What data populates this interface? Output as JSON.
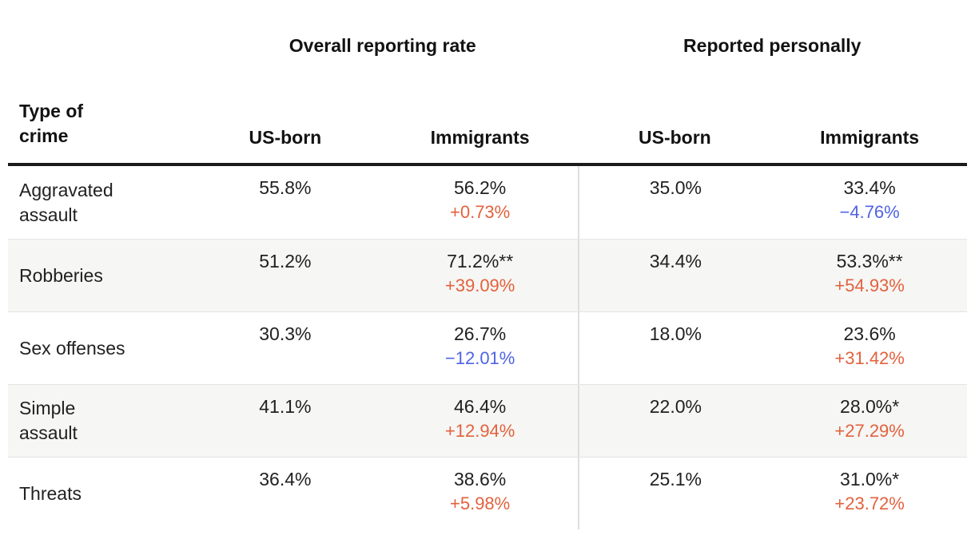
{
  "colors": {
    "increase_orange": "#e2623e",
    "decrease_blue": "#4f63e5",
    "header_rule_black": "#1b1b1b",
    "stripe_gray": "#f6f6f4"
  },
  "header": {
    "row_label": "Type of\ncrime",
    "groups": [
      {
        "label": "Overall reporting rate",
        "cols": [
          "US-born",
          "Immigrants"
        ]
      },
      {
        "label": "Reported personally",
        "cols": [
          "US-born",
          "Immigrants"
        ]
      }
    ]
  },
  "rows": [
    {
      "crime": "Aggravated\nassault",
      "cells": [
        {
          "value": "55.8%"
        },
        {
          "value": "56.2%",
          "delta": "+0.73%",
          "delta_color": "#e2623e"
        },
        {
          "value": "35.0%"
        },
        {
          "value": "33.4%",
          "delta": "−4.76%",
          "delta_color": "#4f63e5"
        }
      ]
    },
    {
      "crime": "Robberies",
      "cells": [
        {
          "value": "51.2%"
        },
        {
          "value": "71.2%**",
          "delta": "+39.09%",
          "delta_color": "#e2623e"
        },
        {
          "value": "34.4%"
        },
        {
          "value": "53.3%**",
          "delta": "+54.93%",
          "delta_color": "#e2623e"
        }
      ]
    },
    {
      "crime": "Sex offenses",
      "cells": [
        {
          "value": "30.3%"
        },
        {
          "value": "26.7%",
          "delta": "−12.01%",
          "delta_color": "#4f63e5"
        },
        {
          "value": "18.0%"
        },
        {
          "value": "23.6%",
          "delta": "+31.42%",
          "delta_color": "#e2623e"
        }
      ]
    },
    {
      "crime": "Simple\nassault",
      "cells": [
        {
          "value": "41.1%"
        },
        {
          "value": "46.4%",
          "delta": "+12.94%",
          "delta_color": "#e2623e"
        },
        {
          "value": "22.0%"
        },
        {
          "value": "28.0%*",
          "delta": "+27.29%",
          "delta_color": "#e2623e"
        }
      ]
    },
    {
      "crime": "Threats",
      "cells": [
        {
          "value": "36.4%"
        },
        {
          "value": "38.6%",
          "delta": "+5.98%",
          "delta_color": "#e2623e"
        },
        {
          "value": "25.1%"
        },
        {
          "value": "31.0%*",
          "delta": "+23.72%",
          "delta_color": "#e2623e"
        }
      ]
    }
  ],
  "chart_data": {
    "type": "table",
    "column_groups": [
      "Overall reporting rate",
      "Reported personally"
    ],
    "columns": [
      "Type of crime",
      "Overall reporting rate — US-born",
      "Overall reporting rate — Immigrants",
      "Reported personally — US-born",
      "Reported personally — Immigrants"
    ],
    "rows": [
      {
        "crime": "Aggravated assault",
        "overall_us_born_pct": 55.8,
        "overall_immigrants_pct": 56.2,
        "overall_immigrants_delta_pct": 0.73,
        "overall_significance": "",
        "personal_us_born_pct": 35.0,
        "personal_immigrants_pct": 33.4,
        "personal_immigrants_delta_pct": -4.76,
        "personal_significance": ""
      },
      {
        "crime": "Robberies",
        "overall_us_born_pct": 51.2,
        "overall_immigrants_pct": 71.2,
        "overall_immigrants_delta_pct": 39.09,
        "overall_significance": "**",
        "personal_us_born_pct": 34.4,
        "personal_immigrants_pct": 53.3,
        "personal_immigrants_delta_pct": 54.93,
        "personal_significance": "**"
      },
      {
        "crime": "Sex offenses",
        "overall_us_born_pct": 30.3,
        "overall_immigrants_pct": 26.7,
        "overall_immigrants_delta_pct": -12.01,
        "overall_significance": "",
        "personal_us_born_pct": 18.0,
        "personal_immigrants_pct": 23.6,
        "personal_immigrants_delta_pct": 31.42,
        "personal_significance": ""
      },
      {
        "crime": "Simple assault",
        "overall_us_born_pct": 41.1,
        "overall_immigrants_pct": 46.4,
        "overall_immigrants_delta_pct": 12.94,
        "overall_significance": "",
        "personal_us_born_pct": 22.0,
        "personal_immigrants_pct": 28.0,
        "personal_immigrants_delta_pct": 27.29,
        "personal_significance": "*"
      },
      {
        "crime": "Threats",
        "overall_us_born_pct": 36.4,
        "overall_immigrants_pct": 38.6,
        "overall_immigrants_delta_pct": 5.98,
        "overall_significance": "",
        "personal_us_born_pct": 25.1,
        "personal_immigrants_pct": 31.0,
        "personal_immigrants_delta_pct": 23.72,
        "personal_significance": "*"
      }
    ],
    "notes": {
      "delta_color_positive": "#e2623e",
      "delta_color_negative": "#4f63e5",
      "layout": "two column groups separated by vertical rule; zebra striping on alternating rows; thick black rule under header"
    }
  }
}
